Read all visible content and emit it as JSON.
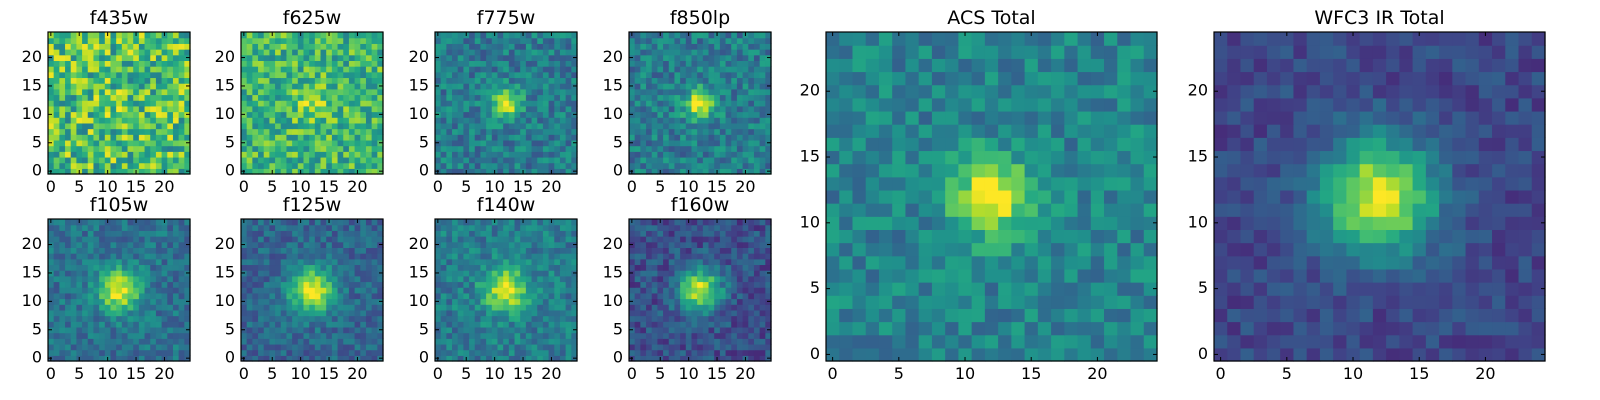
{
  "chart_data": {
    "type": "heatmap",
    "grid_size": 25,
    "colormap": "viridis",
    "source_center": [
      12,
      12
    ],
    "panels": [
      {
        "id": "f435w",
        "title": "f435w",
        "source_strength": 0.05,
        "source_width": 2.0,
        "background": 0.7,
        "noise": 0.28,
        "seed": 11,
        "xticks": [
          "0",
          "5",
          "10",
          "15",
          "20"
        ],
        "yticks": [
          "0",
          "5",
          "10",
          "15",
          "20"
        ]
      },
      {
        "id": "f625w",
        "title": "f625w",
        "source_strength": 0.22,
        "source_width": 2.2,
        "background": 0.66,
        "noise": 0.22,
        "seed": 23,
        "xticks": [
          "0",
          "5",
          "10",
          "15",
          "20"
        ],
        "yticks": [
          "0",
          "5",
          "10",
          "15",
          "20"
        ]
      },
      {
        "id": "f775w",
        "title": "f775w",
        "source_strength": 0.55,
        "source_width": 1.8,
        "background": 0.42,
        "noise": 0.16,
        "seed": 37,
        "xticks": [
          "0",
          "5",
          "10",
          "15",
          "20"
        ],
        "yticks": [
          "0",
          "5",
          "10",
          "15",
          "20"
        ]
      },
      {
        "id": "f850lp",
        "title": "f850lp",
        "source_strength": 0.55,
        "source_width": 1.9,
        "background": 0.42,
        "noise": 0.16,
        "seed": 41,
        "xticks": [
          "0",
          "5",
          "10",
          "15",
          "20"
        ],
        "yticks": [
          "0",
          "5",
          "10",
          "15",
          "20"
        ]
      },
      {
        "id": "f105w",
        "title": "f105w",
        "source_strength": 0.6,
        "source_width": 2.6,
        "background": 0.38,
        "noise": 0.13,
        "seed": 53,
        "xticks": [
          "0",
          "5",
          "10",
          "15",
          "20"
        ],
        "yticks": [
          "0",
          "5",
          "10",
          "15",
          "20"
        ]
      },
      {
        "id": "f125w",
        "title": "f125w",
        "source_strength": 0.65,
        "source_width": 2.8,
        "background": 0.33,
        "noise": 0.12,
        "seed": 67,
        "xticks": [
          "0",
          "5",
          "10",
          "15",
          "20"
        ],
        "yticks": [
          "0",
          "5",
          "10",
          "15",
          "20"
        ]
      },
      {
        "id": "f140w",
        "title": "f140w",
        "source_strength": 0.55,
        "source_width": 2.7,
        "background": 0.42,
        "noise": 0.14,
        "seed": 79,
        "xticks": [
          "0",
          "5",
          "10",
          "15",
          "20"
        ],
        "yticks": [
          "0",
          "5",
          "10",
          "15",
          "20"
        ]
      },
      {
        "id": "f160w",
        "title": "f160w",
        "source_strength": 0.7,
        "source_width": 2.6,
        "background": 0.25,
        "noise": 0.13,
        "seed": 83,
        "xticks": [
          "0",
          "5",
          "10",
          "15",
          "20"
        ],
        "yticks": [
          "0",
          "5",
          "10",
          "15",
          "20"
        ]
      },
      {
        "id": "acs-total",
        "title": "ACS Total",
        "source_strength": 0.6,
        "source_width": 2.0,
        "background": 0.45,
        "noise": 0.14,
        "seed": 97,
        "xticks": [
          "0",
          "5",
          "10",
          "15",
          "20"
        ],
        "yticks": [
          "0",
          "5",
          "10",
          "15",
          "20"
        ]
      },
      {
        "id": "wfc3-ir-total",
        "title": "WFC3 IR Total",
        "source_strength": 0.75,
        "source_width": 3.0,
        "background": 0.22,
        "noise": 0.09,
        "seed": 101,
        "xticks": [
          "0",
          "5",
          "10",
          "15",
          "20"
        ],
        "yticks": [
          "0",
          "5",
          "10",
          "15",
          "20"
        ]
      }
    ]
  }
}
